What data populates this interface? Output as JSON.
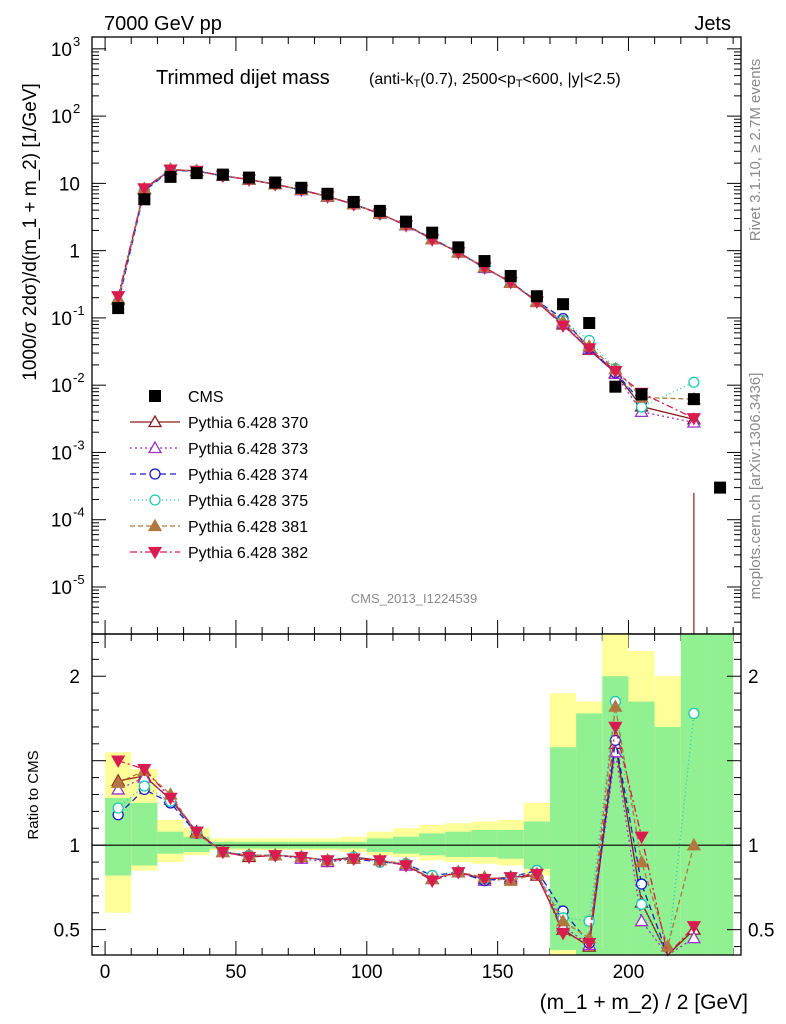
{
  "header": {
    "left": "7000 GeV pp",
    "right": "Jets",
    "title_main": "Trimmed dijet mass",
    "title_sub": "(anti-k_T(0.7), 2500<p_T<600, |y|<2.5)",
    "side_top": "Rivet 3.1.10, ≥ 2.7M events",
    "side_bottom": "mcplots.cern.ch [arXiv:1306.3436]",
    "watermark": "CMS_2013_I1224539"
  },
  "chart_data": {
    "type": "scatter",
    "xlabel": "(m_1 + m_2) / 2 [GeV]",
    "ylabel_top": "1000/σ 2dσ)/d(m_1 + m_2) [1/GeV]",
    "ylabel_bottom": "Ratio to CMS",
    "x_range": [
      -5,
      243
    ],
    "x_ticks": [
      0,
      50,
      100,
      150,
      200
    ],
    "top_ylim": [
      2e-06,
      1500
    ],
    "top_ytick_labels": [
      "10^-5",
      "10^-4",
      "10^-3",
      "10^-2",
      "10^-1",
      "1",
      "10",
      "10^2",
      "10^3"
    ],
    "ratio_ylim": [
      0.35,
      2.25
    ],
    "ratio_ticks": [
      0.5,
      1,
      2
    ],
    "colors": {
      "cms": "#000000",
      "p370": "#8b1a1a",
      "p373": "#9932cc",
      "p374": "#1a1acc",
      "p375": "#20c8b4",
      "p381": "#b07840",
      "p382": "#d81c50",
      "band_yellow": "#ffff99",
      "band_green": "#91f091"
    },
    "x": [
      5,
      15,
      25,
      35,
      45,
      55,
      65,
      75,
      85,
      95,
      105,
      115,
      125,
      135,
      145,
      155,
      165,
      175,
      185,
      195,
      205,
      215,
      225,
      235
    ],
    "cms": [
      0.14,
      5.8,
      12.5,
      14.2,
      13.5,
      12.2,
      10.3,
      8.6,
      7.0,
      5.3,
      3.9,
      2.7,
      1.85,
      1.12,
      0.7,
      0.42,
      0.21,
      0.16,
      0.084,
      0.0095,
      0.0073,
      null,
      0.0062,
      0.0003
    ],
    "band_green": [
      [
        0.82,
        1.28
      ],
      [
        0.88,
        1.25
      ],
      [
        0.95,
        1.08
      ],
      [
        0.96,
        1.05
      ],
      [
        0.98,
        1.02
      ],
      [
        0.98,
        1.02
      ],
      [
        0.98,
        1.02
      ],
      [
        0.98,
        1.02
      ],
      [
        0.98,
        1.02
      ],
      [
        0.98,
        1.02
      ],
      [
        0.96,
        1.04
      ],
      [
        0.95,
        1.05
      ],
      [
        0.94,
        1.07
      ],
      [
        0.93,
        1.08
      ],
      [
        0.93,
        1.09
      ],
      [
        0.92,
        1.09
      ],
      [
        0.86,
        1.14
      ],
      [
        0.38,
        1.58
      ],
      [
        0.35,
        1.78
      ],
      [
        0.35,
        2.0
      ],
      [
        0.35,
        1.85
      ],
      [
        0.35,
        1.7
      ],
      [
        0.35,
        2.25
      ],
      [
        0.35,
        2.25
      ]
    ],
    "band_yellow": [
      [
        0.6,
        1.55
      ],
      [
        0.85,
        1.45
      ],
      [
        0.9,
        1.15
      ],
      [
        0.94,
        1.1
      ],
      [
        0.97,
        1.04
      ],
      [
        0.97,
        1.04
      ],
      [
        0.97,
        1.04
      ],
      [
        0.97,
        1.04
      ],
      [
        0.97,
        1.04
      ],
      [
        0.96,
        1.05
      ],
      [
        0.94,
        1.08
      ],
      [
        0.93,
        1.1
      ],
      [
        0.91,
        1.12
      ],
      [
        0.9,
        1.13
      ],
      [
        0.89,
        1.14
      ],
      [
        0.88,
        1.15
      ],
      [
        0.82,
        1.25
      ],
      [
        0.35,
        1.9
      ],
      [
        0.35,
        1.85
      ],
      [
        0.35,
        2.25
      ],
      [
        0.35,
        2.15
      ],
      [
        0.35,
        2.0
      ],
      [
        0.35,
        2.25
      ],
      [
        0.35,
        2.25
      ]
    ],
    "series": [
      {
        "name": "Pythia 6.428 370",
        "key": "p370",
        "marker": "tri-open",
        "dash": "",
        "ratio": [
          1.38,
          1.41,
          1.27,
          1.08,
          0.96,
          0.93,
          0.94,
          0.93,
          0.91,
          0.93,
          0.91,
          0.88,
          0.8,
          0.84,
          0.8,
          0.81,
          0.82,
          0.5,
          0.4,
          1.6,
          0.66,
          0.28,
          0.5,
          null
        ]
      },
      {
        "name": "Pythia 6.428 373",
        "key": "p373",
        "marker": "tri-open",
        "dash": "2,3",
        "ratio": [
          1.33,
          1.4,
          1.28,
          1.07,
          0.96,
          0.94,
          0.94,
          0.92,
          0.9,
          0.92,
          0.91,
          0.88,
          0.8,
          0.84,
          0.79,
          0.8,
          0.84,
          0.52,
          0.41,
          1.55,
          0.55,
          0.26,
          0.45,
          null
        ]
      },
      {
        "name": "Pythia 6.428 374",
        "key": "p374",
        "marker": "circle-open",
        "dash": "6,4",
        "ratio": [
          1.18,
          1.33,
          1.25,
          1.07,
          0.96,
          0.94,
          0.94,
          0.93,
          0.91,
          0.92,
          0.9,
          0.89,
          0.82,
          0.84,
          0.79,
          0.81,
          0.85,
          0.61,
          0.42,
          1.62,
          0.77,
          0.3,
          null,
          null
        ]
      },
      {
        "name": "Pythia 6.428 375",
        "key": "p375",
        "marker": "circle-open",
        "dash": "1,3",
        "ratio": [
          1.22,
          1.35,
          1.26,
          1.08,
          0.96,
          0.94,
          0.94,
          0.93,
          0.91,
          0.93,
          0.9,
          0.89,
          0.82,
          0.84,
          0.8,
          0.81,
          0.85,
          0.57,
          0.55,
          1.85,
          0.65,
          0.27,
          1.78,
          null
        ]
      },
      {
        "name": "Pythia 6.428 381",
        "key": "p381",
        "marker": "tri-filled",
        "dash": "5,3",
        "ratio": [
          1.37,
          1.44,
          1.3,
          1.07,
          0.96,
          0.94,
          0.94,
          0.93,
          0.91,
          0.92,
          0.91,
          0.89,
          0.8,
          0.84,
          0.81,
          0.79,
          0.83,
          0.55,
          0.45,
          1.82,
          0.9,
          0.4,
          1.0,
          null
        ]
      },
      {
        "name": "Pythia 6.428 382",
        "key": "p382",
        "marker": "tri-down-filled",
        "dash": "7,3,2,3",
        "ratio": [
          1.5,
          1.45,
          1.28,
          1.08,
          0.96,
          0.93,
          0.94,
          0.93,
          0.91,
          0.92,
          0.91,
          0.88,
          0.79,
          0.84,
          0.8,
          0.81,
          0.83,
          0.48,
          0.42,
          1.7,
          1.05,
          0.33,
          0.52,
          null
        ]
      }
    ]
  }
}
